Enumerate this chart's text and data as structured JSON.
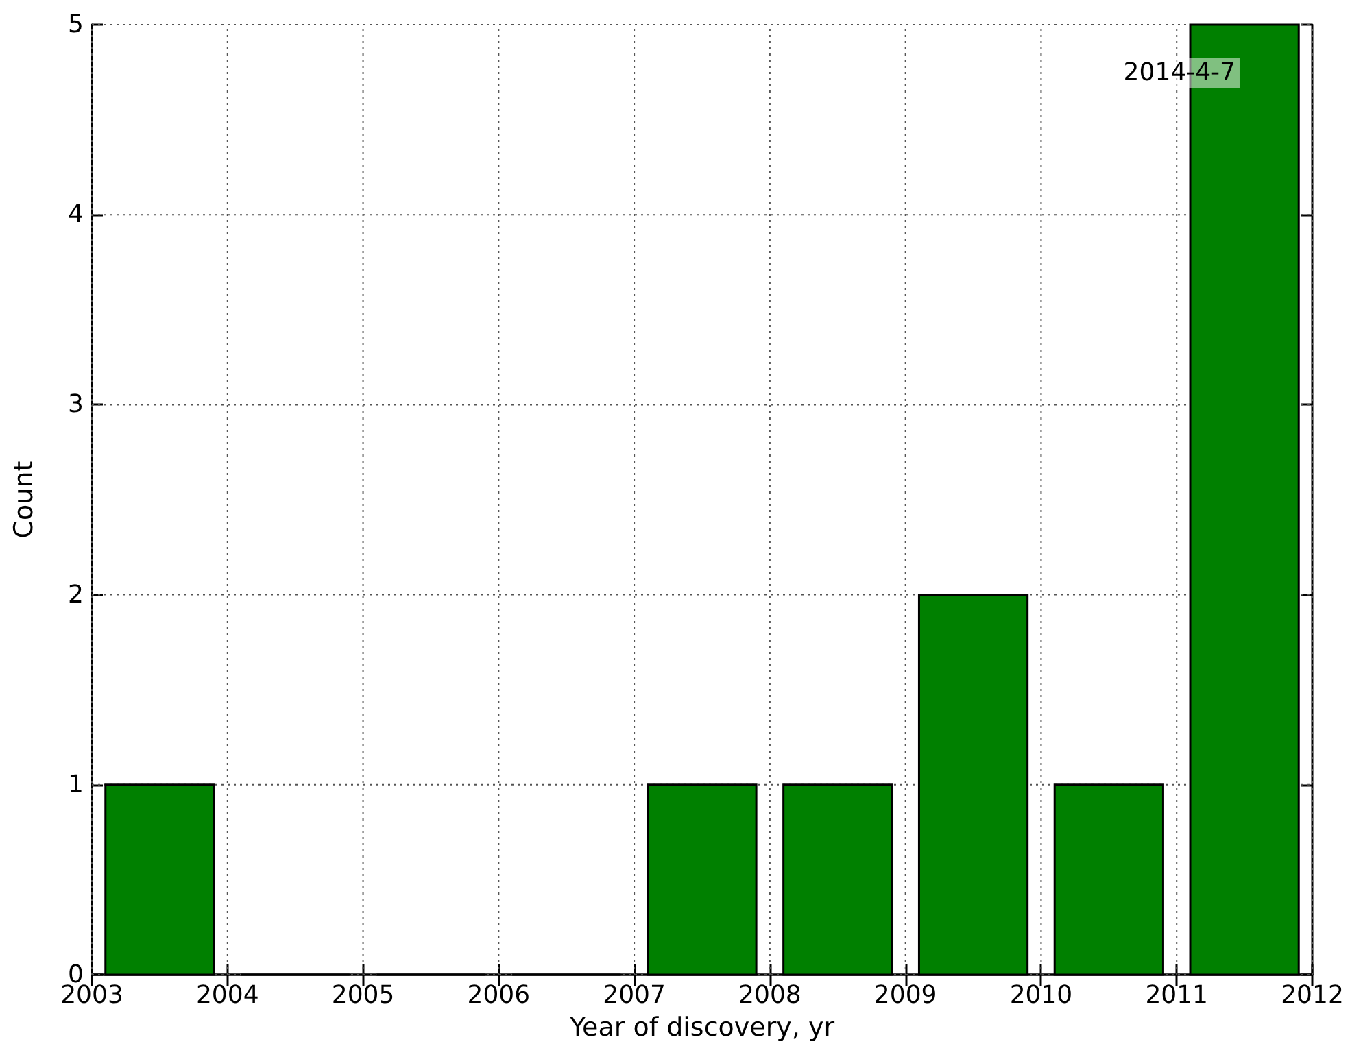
{
  "chart_data": {
    "type": "histogram",
    "xlabel": "Year of discovery, yr",
    "ylabel": "Count",
    "bins": [
      2003,
      2004,
      2005,
      2006,
      2007,
      2008,
      2009,
      2010,
      2011,
      2012
    ],
    "values": [
      1,
      0,
      0,
      0,
      1,
      1,
      2,
      1,
      5
    ],
    "color": "#008000",
    "xlim": [
      2003,
      2012
    ],
    "xticks": [
      2003,
      2004,
      2005,
      2006,
      2007,
      2008,
      2009,
      2010,
      2011,
      2012
    ],
    "ylim": [
      0,
      5
    ],
    "yticks": [
      0,
      1,
      2,
      3,
      4,
      5
    ],
    "grid": true,
    "annotations": [
      "2014-4-7"
    ]
  }
}
